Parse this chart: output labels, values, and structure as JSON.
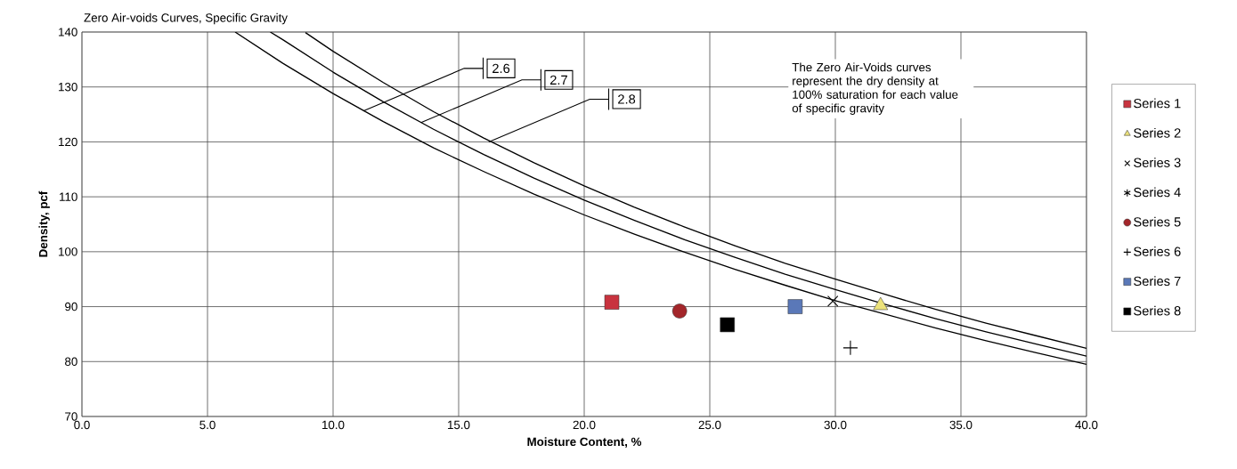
{
  "chart_data": {
    "type": "scatter",
    "title": "Zero Air-voids Curves, Specific Gravity",
    "xlabel": "Moisture Content, %",
    "ylabel": "Density, pcf",
    "xlim": [
      0,
      40
    ],
    "ylim": [
      70,
      140
    ],
    "xticks": [
      {
        "value": 0,
        "label": "0.0"
      },
      {
        "value": 5,
        "label": "5.0"
      },
      {
        "value": 10,
        "label": "10.0"
      },
      {
        "value": 15,
        "label": "15.0"
      },
      {
        "value": 20,
        "label": "20.0"
      },
      {
        "value": 25,
        "label": "25.0"
      },
      {
        "value": 30,
        "label": "30.0"
      },
      {
        "value": 35,
        "label": "35.0"
      },
      {
        "value": 40,
        "label": "40.0"
      }
    ],
    "yticks": [
      70,
      80,
      90,
      100,
      110,
      120,
      130,
      140
    ],
    "grid": true,
    "legend": "right",
    "series": [
      {
        "name": "Series 1",
        "marker": "square",
        "color": "#c8333f",
        "x": [
          21.1
        ],
        "values": [
          90.8
        ]
      },
      {
        "name": "Series 2",
        "marker": "triangle",
        "color": "#ece27a",
        "x": [
          31.8
        ],
        "values": [
          90.2
        ]
      },
      {
        "name": "Series 3",
        "marker": "cross",
        "color": "#000000",
        "x": [
          29.9
        ],
        "values": [
          91.0
        ]
      },
      {
        "name": "Series 4",
        "marker": "star",
        "color": "#000000",
        "x": [
          null
        ],
        "values": [
          null
        ]
      },
      {
        "name": "Series 5",
        "marker": "circle",
        "color": "#a3262a",
        "x": [
          23.8
        ],
        "values": [
          89.2
        ]
      },
      {
        "name": "Series 6",
        "marker": "plus",
        "color": "#000000",
        "x": [
          30.6
        ],
        "values": [
          82.5
        ]
      },
      {
        "name": "Series 7",
        "marker": "square",
        "color": "#5a78b8",
        "x": [
          28.4
        ],
        "values": [
          90.0
        ]
      },
      {
        "name": "Series 8",
        "marker": "square",
        "color": "#000000",
        "x": [
          25.7
        ],
        "values": [
          86.7
        ]
      },
      {
        "type": "line",
        "marker": "none",
        "color": "#000000",
        "x": [
          6.1,
          8,
          10,
          12,
          14,
          16,
          18,
          20,
          22,
          24,
          26,
          28,
          30,
          32,
          34,
          36,
          38,
          40
        ],
        "values": [
          140.0,
          134.3,
          128.8,
          123.7,
          118.9,
          114.6,
          110.5,
          106.7,
          103.2,
          99.9,
          96.8,
          93.9,
          91.1,
          88.6,
          86.1,
          83.8,
          81.6,
          79.5
        ]
      },
      {
        "type": "line",
        "marker": "none",
        "color": "#000000",
        "x": [
          7.5,
          8,
          10,
          12,
          14,
          16,
          18,
          20,
          22,
          24,
          26,
          28,
          30,
          32,
          34,
          36,
          38,
          40
        ],
        "values": [
          140.0,
          138.6,
          132.7,
          127.3,
          122.3,
          117.7,
          113.4,
          109.4,
          105.7,
          102.2,
          99.0,
          95.9,
          93.1,
          90.4,
          87.8,
          85.4,
          83.2,
          81.0
        ]
      },
      {
        "type": "line",
        "marker": "none",
        "color": "#000000",
        "x": [
          8.9,
          10,
          12,
          14,
          16,
          18,
          20,
          22,
          24,
          26,
          28,
          30,
          32,
          34,
          36,
          38,
          40
        ],
        "values": [
          139.9,
          136.5,
          130.8,
          125.5,
          120.7,
          116.2,
          112.0,
          108.1,
          104.5,
          101.1,
          97.9,
          95.0,
          92.2,
          89.5,
          87.0,
          84.7,
          82.4
        ]
      }
    ],
    "annotations": [
      {
        "text": "2.6",
        "x": 11.2,
        "y": 125.6
      },
      {
        "text": "2.7",
        "x": 13.5,
        "y": 123.5
      },
      {
        "text": "2.8",
        "x": 16.2,
        "y": 120.0
      },
      "The Zero Air-Voids curves represent the dry density at 100% saturation for each value of specific gravity"
    ]
  }
}
